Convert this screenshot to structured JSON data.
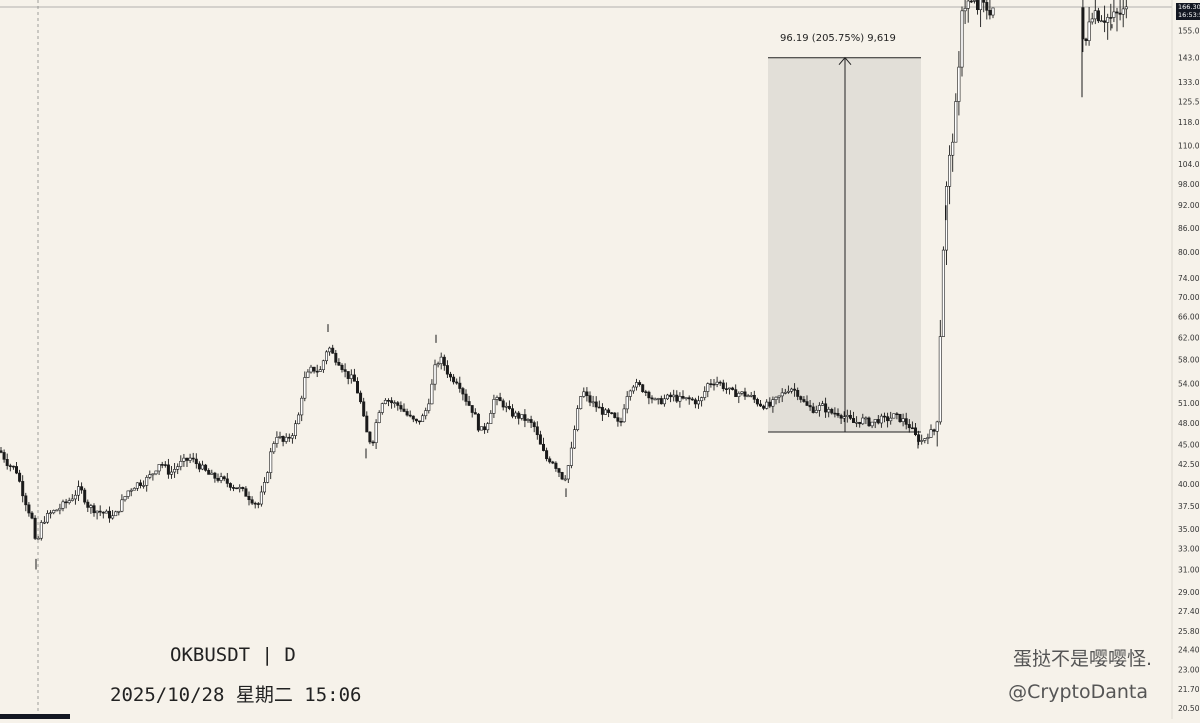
{
  "chart_data": {
    "type": "candlestick",
    "symbol_line": "OKBUSDT | D",
    "datetime_line": "2025/10/28 星期二 15:06",
    "watermark": "蛋挞不是嘤嘤怪.",
    "handle": "@CryptoDanta",
    "y_ticks": [
      "166.30",
      "155.00",
      "143.00",
      "133.00",
      "125.50",
      "118.00",
      "110.00",
      "104.00",
      "98.00",
      "92.00",
      "86.00",
      "80.00",
      "74.00",
      "70.00",
      "66.00",
      "62.00",
      "58.00",
      "54.00",
      "51.00",
      "48.00",
      "45.00",
      "42.50",
      "40.00",
      "37.50",
      "35.00",
      "33.00",
      "31.00",
      "29.00",
      "27.40",
      "25.80",
      "24.40",
      "23.00",
      "21.70",
      "20.50"
    ],
    "y_axis": "log",
    "current_price": "166.30",
    "countdown": "16:53:52",
    "measure": {
      "label": "96.19 (205.75%) 9,619",
      "from_price": 46.75,
      "to_price": 142.94
    },
    "path": [
      [
        0,
        44.2
      ],
      [
        8,
        42.5
      ],
      [
        16,
        41.8
      ],
      [
        24,
        38.5
      ],
      [
        32,
        36.0
      ],
      [
        36,
        33.0
      ],
      [
        42,
        35.8
      ],
      [
        50,
        36.6
      ],
      [
        60,
        37.3
      ],
      [
        70,
        38.2
      ],
      [
        80,
        39.5
      ],
      [
        88,
        37.5
      ],
      [
        96,
        37.0
      ],
      [
        106,
        36.6
      ],
      [
        114,
        36.2
      ],
      [
        120,
        37.5
      ],
      [
        128,
        39.2
      ],
      [
        136,
        40.0
      ],
      [
        144,
        40.3
      ],
      [
        152,
        41.2
      ],
      [
        160,
        42.8
      ],
      [
        170,
        41.3
      ],
      [
        180,
        42.5
      ],
      [
        190,
        43.2
      ],
      [
        200,
        42.2
      ],
      [
        210,
        41.0
      ],
      [
        220,
        40.6
      ],
      [
        230,
        40.0
      ],
      [
        240,
        39.4
      ],
      [
        250,
        38.4
      ],
      [
        258,
        37.6
      ],
      [
        265,
        40.0
      ],
      [
        270,
        43.5
      ],
      [
        276,
        46.5
      ],
      [
        284,
        45.2
      ],
      [
        292,
        46.5
      ],
      [
        298,
        48.5
      ],
      [
        304,
        54.5
      ],
      [
        312,
        56.5
      ],
      [
        320,
        56.0
      ],
      [
        328,
        60.5
      ],
      [
        334,
        58.5
      ],
      [
        340,
        57.5
      ],
      [
        346,
        55.5
      ],
      [
        354,
        54.5
      ],
      [
        360,
        51.5
      ],
      [
        366,
        46.8
      ],
      [
        372,
        45.0
      ],
      [
        378,
        49.5
      ],
      [
        384,
        52.0
      ],
      [
        392,
        51.0
      ],
      [
        400,
        50.5
      ],
      [
        408,
        49.0
      ],
      [
        416,
        48.0
      ],
      [
        424,
        49.0
      ],
      [
        430,
        52.0
      ],
      [
        436,
        57.5
      ],
      [
        442,
        58.0
      ],
      [
        450,
        55.0
      ],
      [
        458,
        54.5
      ],
      [
        466,
        51.5
      ],
      [
        474,
        49.5
      ],
      [
        480,
        46.8
      ],
      [
        486,
        47.5
      ],
      [
        494,
        51.5
      ],
      [
        502,
        51.0
      ],
      [
        510,
        49.5
      ],
      [
        518,
        49.0
      ],
      [
        526,
        48.5
      ],
      [
        534,
        47.5
      ],
      [
        540,
        45.0
      ],
      [
        546,
        43.2
      ],
      [
        552,
        43.0
      ],
      [
        558,
        41.8
      ],
      [
        564,
        40.5
      ],
      [
        570,
        43.0
      ],
      [
        576,
        48.5
      ],
      [
        582,
        53.0
      ],
      [
        588,
        51.5
      ],
      [
        596,
        50.5
      ],
      [
        604,
        49.5
      ],
      [
        612,
        49.0
      ],
      [
        620,
        47.5
      ],
      [
        626,
        52.0
      ],
      [
        632,
        54.0
      ],
      [
        640,
        53.5
      ],
      [
        648,
        52.5
      ],
      [
        656,
        51.0
      ],
      [
        664,
        51.5
      ],
      [
        672,
        52.0
      ],
      [
        680,
        51.5
      ],
      [
        690,
        51.5
      ],
      [
        700,
        51.0
      ],
      [
        708,
        54.0
      ],
      [
        716,
        54.5
      ],
      [
        724,
        53.5
      ],
      [
        732,
        52.5
      ],
      [
        740,
        52.5
      ],
      [
        750,
        52.0
      ],
      [
        760,
        50.8
      ],
      [
        770,
        50.5
      ],
      [
        780,
        52.0
      ],
      [
        790,
        53.5
      ],
      [
        798,
        52.5
      ],
      [
        806,
        50.5
      ],
      [
        814,
        50.0
      ],
      [
        822,
        50.5
      ],
      [
        830,
        49.5
      ],
      [
        838,
        49.5
      ],
      [
        846,
        48.8
      ],
      [
        854,
        48.0
      ],
      [
        862,
        48.5
      ],
      [
        870,
        48.0
      ],
      [
        878,
        48.5
      ],
      [
        886,
        48.5
      ],
      [
        894,
        49.0
      ],
      [
        902,
        48.5
      ],
      [
        910,
        47.5
      ],
      [
        916,
        46.0
      ],
      [
        922,
        45.5
      ],
      [
        928,
        46.5
      ],
      [
        934,
        46.8
      ],
      [
        938,
        50.0
      ],
      [
        942,
        75.0
      ],
      [
        946,
        95.0
      ],
      [
        952,
        112.0
      ],
      [
        958,
        128.0
      ],
      [
        962,
        168.0
      ],
      [
        970,
        168.0
      ],
      [
        978,
        166.0
      ],
      [
        986,
        166.0
      ],
      [
        994,
        166.0
      ],
      [
        1080,
        166.0
      ],
      [
        1084,
        142.0
      ],
      [
        1090,
        166.0
      ],
      [
        1096,
        164.0
      ],
      [
        1104,
        162.0
      ],
      [
        1112,
        160.0
      ],
      [
        1120,
        163.0
      ],
      [
        1128,
        164.0
      ]
    ],
    "wicks": [
      [
        36,
        32.0,
        31.0
      ],
      [
        328,
        63.0,
        64.5
      ],
      [
        436,
        61.0,
        62.5
      ],
      [
        366,
        44.5,
        43.2
      ],
      [
        566,
        39.5,
        38.5
      ],
      [
        918,
        45.5,
        44.5
      ],
      [
        946,
        92.0,
        88.0
      ],
      [
        1082,
        152.0,
        127.0
      ],
      [
        1112,
        158.0,
        156.0
      ]
    ]
  }
}
